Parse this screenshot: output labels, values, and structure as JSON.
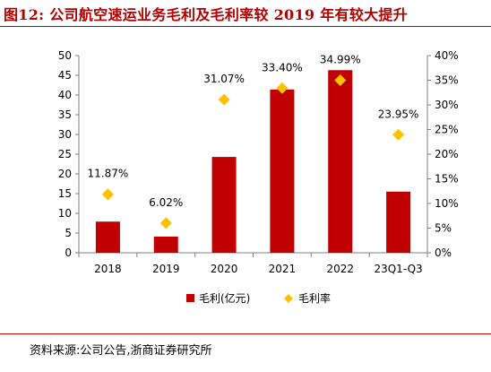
{
  "header": {
    "title": "图12:  公司航空速运业务毛利及毛利率较 2019 年有较大提升"
  },
  "footer": {
    "source": "资料来源:公司公告,浙商证券研究所"
  },
  "colors": {
    "title": "#b30000",
    "bar": "#c00000",
    "marker": "#ffc000"
  },
  "chart_data": {
    "type": "bar",
    "categories": [
      "2018",
      "2019",
      "2020",
      "2021",
      "2022",
      "23Q1-Q3"
    ],
    "series": [
      {
        "name": "毛利(亿元)",
        "kind": "bar",
        "axis": "left",
        "values": [
          7.9,
          4.1,
          24.3,
          41.4,
          46.3,
          15.5
        ]
      },
      {
        "name": "毛利率",
        "kind": "scatter",
        "axis": "right",
        "values": [
          11.87,
          6.02,
          31.07,
          33.4,
          34.99,
          23.95
        ],
        "labels": [
          "11.87%",
          "6.02%",
          "31.07%",
          "33.40%",
          "34.99%",
          "23.95%"
        ]
      }
    ],
    "y_left": {
      "min": 0,
      "max": 50,
      "ticks": [
        "0",
        "5",
        "10",
        "15",
        "20",
        "25",
        "30",
        "35",
        "40",
        "45",
        "50"
      ]
    },
    "y_right": {
      "min": 0,
      "max": 40,
      "ticks": [
        "0%",
        "5%",
        "10%",
        "15%",
        "20%",
        "25%",
        "30%",
        "35%",
        "40%"
      ]
    },
    "xlabel": "",
    "ylabel": "",
    "grid": false,
    "legend": "bottom-center"
  }
}
